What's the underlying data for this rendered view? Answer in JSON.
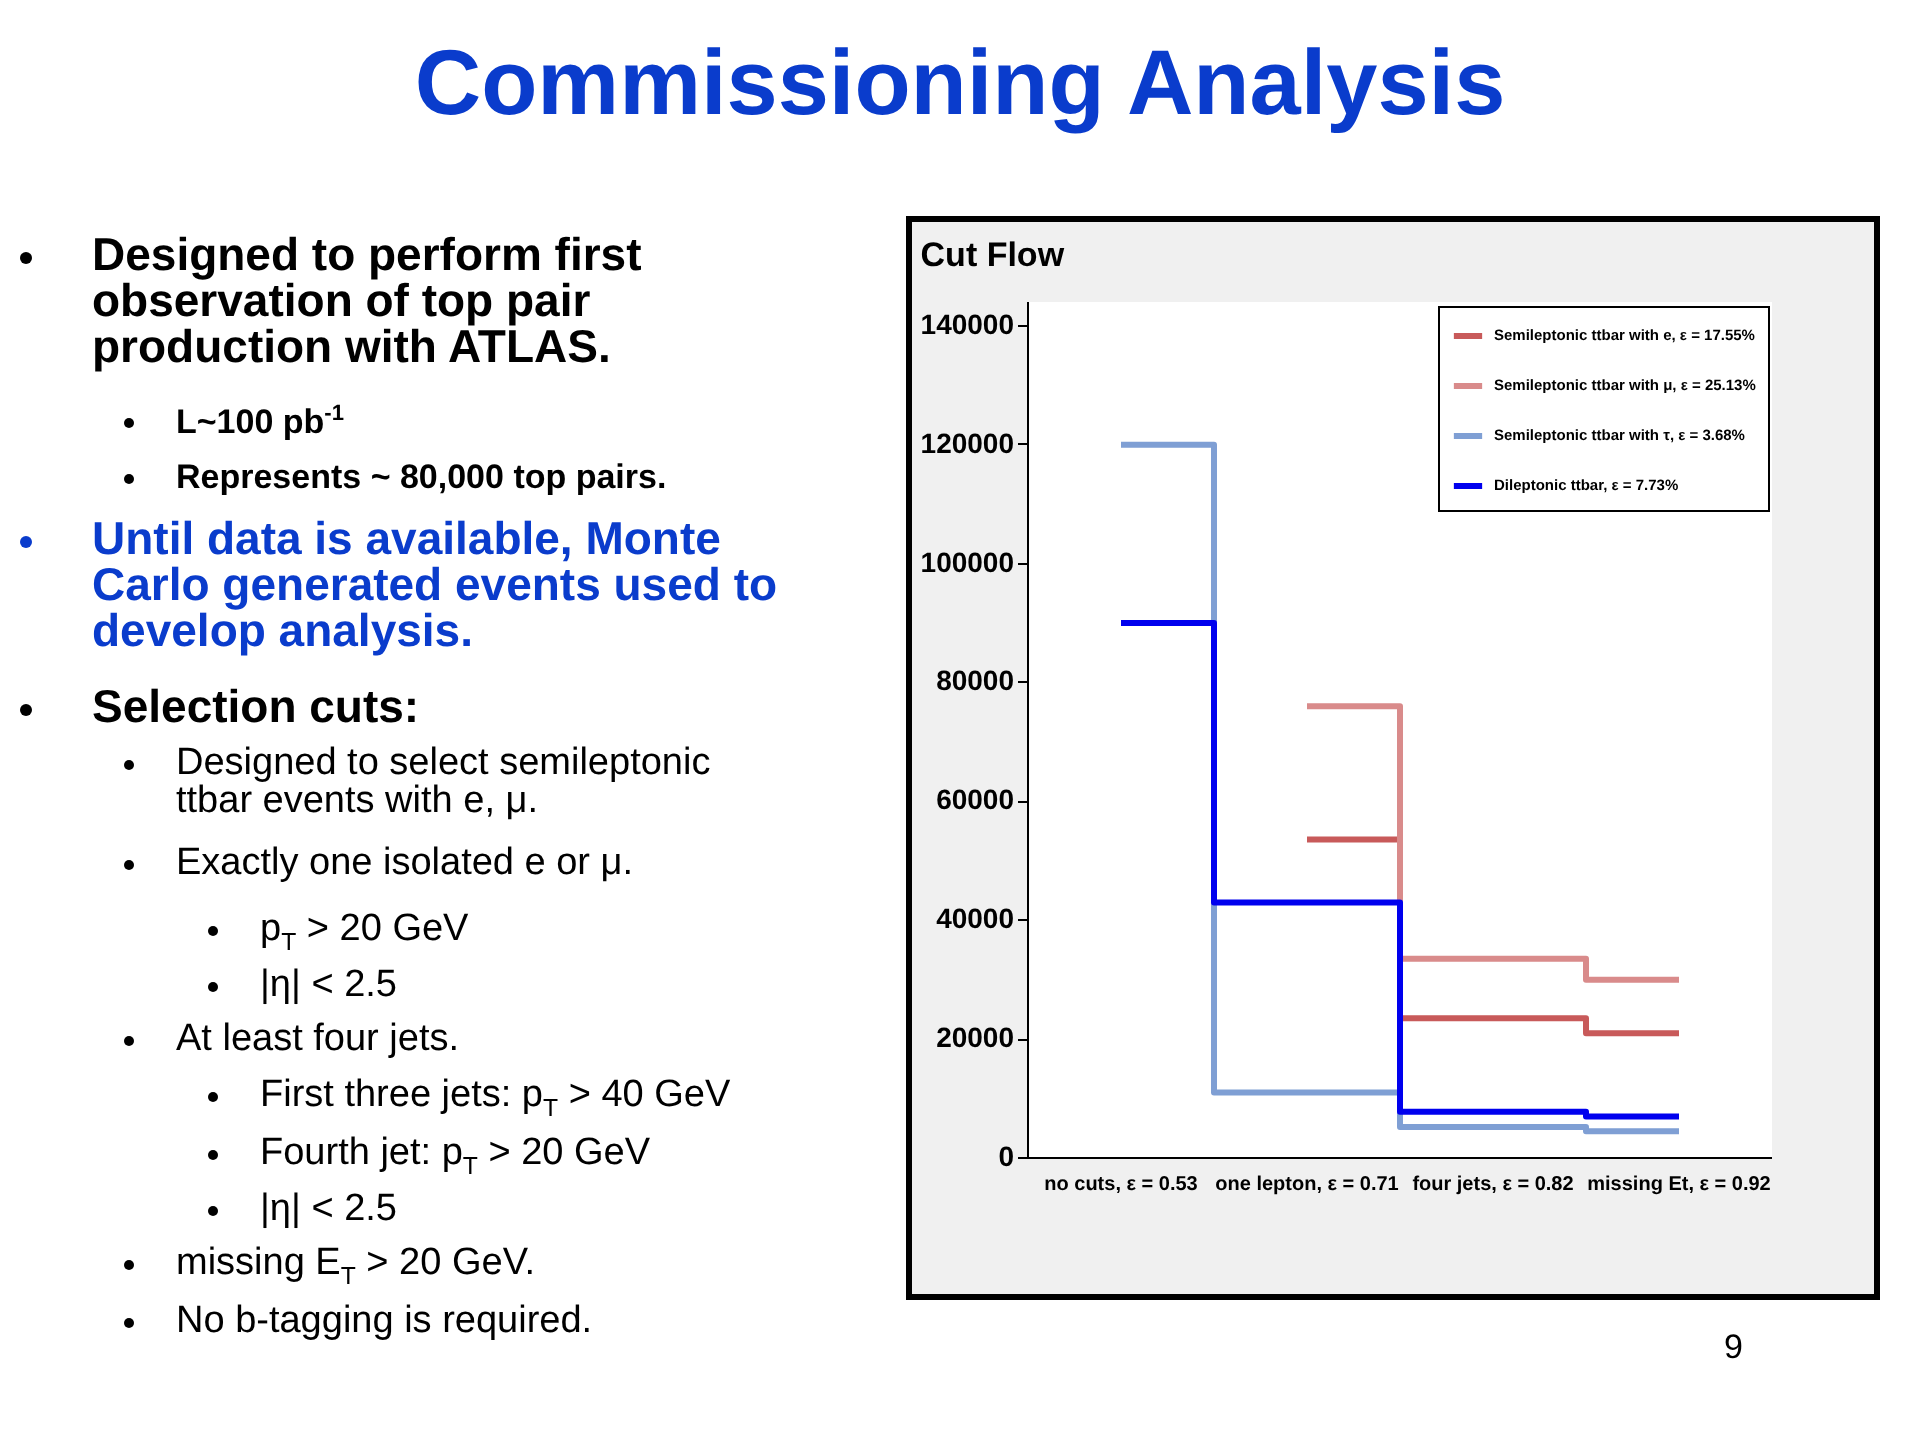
{
  "chart_data": [
    {
      "type": "other",
      "title": "Commissioning Analysis",
      "annotations": [
        "Designed to perform first observation of top pair production with ATLAS.",
        "L~100 pb$^{-1}$",
        "Represents ~ 80,000 top pairs.",
        "Until data is available, Monte Carlo generated events used to develop analysis.",
        "Selection cuts:",
        "Designed to select semileptonic ttbar events with e, μ.",
        "Exactly one isolated e or μ.",
        "p$_{T}$ > 20 GeV",
        "|η| < 2.5",
        "At least four jets.",
        "First three jets: p$_{T}$ > 40 GeV",
        "Fourth jet: p$_{T}$ > 20 GeV",
        "|η| < 2.5",
        "missing E$_{T}$ > 20 GeV.",
        "No b-tagging is required.",
        "9"
      ]
    },
    {
      "type": "step",
      "title": "Cut Flow",
      "categories": [
        "no cuts, ε = 0.53",
        "one lepton, ε = 0.71",
        "four jets, ε = 0.82",
        "missing Et, ε = 0.92"
      ],
      "series": [
        {
          "name": "Semileptonic ttbar with e, ε = 17.55%",
          "color": "#c85a5a",
          "values": [
            null,
            53600,
            23500,
            21000
          ]
        },
        {
          "name": "Semileptonic ttbar with μ, ε = 25.13%",
          "color": "#d98b8b",
          "values": [
            null,
            76000,
            33500,
            30000
          ]
        },
        {
          "name": "Semileptonic ttbar with τ, ε = 3.68%",
          "color": "#7f9fd4",
          "values": [
            120000,
            11000,
            5200,
            4500
          ]
        },
        {
          "name": "Dileptonic ttbar, ε = 7.73%",
          "color": "#0000ee",
          "values": [
            90000,
            43000,
            7800,
            7000
          ]
        }
      ],
      "ylim": [
        0,
        144000
      ],
      "yticks": [
        0,
        20000,
        40000,
        60000,
        80000,
        100000,
        120000,
        140000
      ],
      "grid": false,
      "legend": "top right"
    }
  ]
}
